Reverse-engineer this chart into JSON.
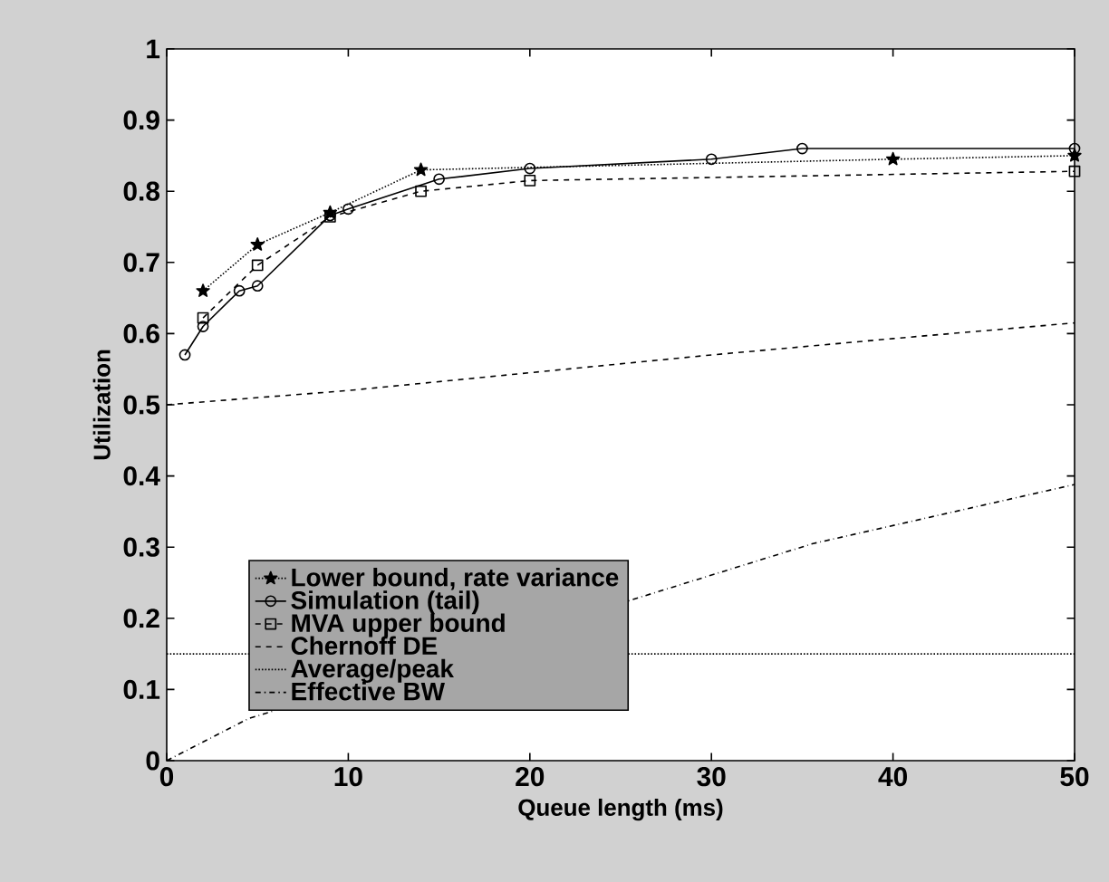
{
  "chart_data": {
    "type": "line",
    "xlabel": "Queue length (ms)",
    "ylabel": "Utilization",
    "xlim": [
      0,
      50
    ],
    "ylim": [
      0,
      1
    ],
    "xticks": [
      0,
      10,
      20,
      30,
      40,
      50
    ],
    "yticks": [
      0,
      0.1,
      0.2,
      0.3,
      0.4,
      0.5,
      0.6,
      0.7,
      0.8,
      0.9,
      1
    ],
    "legend": "bottom left",
    "grid": false,
    "series": [
      {
        "name": "Lower bound, rate variance",
        "color": "#000000",
        "line_style": "dotted",
        "marker": "star",
        "x": [
          2,
          5,
          9,
          14,
          40,
          50
        ],
        "values": [
          0.66,
          0.725,
          0.77,
          0.83,
          0.845,
          0.85
        ]
      },
      {
        "name": "Simulation (tail)",
        "color": "#000000",
        "line_style": "solid",
        "marker": "circle",
        "x": [
          1,
          2,
          4,
          5,
          9,
          10,
          15,
          20,
          30,
          35,
          50
        ],
        "values": [
          0.57,
          0.61,
          0.66,
          0.667,
          0.766,
          0.775,
          0.817,
          0.832,
          0.845,
          0.86,
          0.86
        ]
      },
      {
        "name": "MVA upper bound",
        "color": "#000000",
        "line_style": "dashed",
        "marker": "square",
        "x": [
          2,
          5,
          9,
          14,
          20,
          50
        ],
        "values": [
          0.622,
          0.696,
          0.764,
          0.8,
          0.815,
          0.828
        ]
      },
      {
        "name": "Chernoff DE",
        "color": "#000000",
        "line_style": "dashed",
        "marker": "none",
        "x": [
          0,
          10,
          20,
          30,
          40,
          50
        ],
        "values": [
          0.5,
          0.52,
          0.545,
          0.57,
          0.593,
          0.615
        ]
      },
      {
        "name": "Average/peak",
        "color": "#000000",
        "line_style": "dotted",
        "marker": "none",
        "x": [
          0,
          50
        ],
        "values": [
          0.15,
          0.15
        ]
      },
      {
        "name": "Effective BW",
        "color": "#000000",
        "line_style": "dashdot",
        "marker": "none",
        "x": [
          0,
          4.5,
          35.6,
          50
        ],
        "values": [
          0,
          0.059,
          0.305,
          0.388
        ]
      }
    ]
  }
}
